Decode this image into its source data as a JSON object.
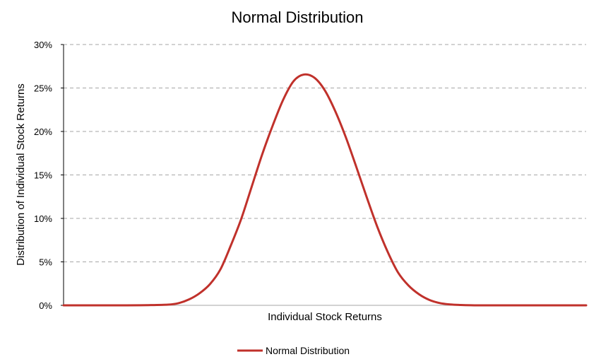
{
  "chart_data": {
    "type": "line",
    "title": "Normal Distribution",
    "xlabel": "Individual Stock Returns",
    "ylabel": "Distribution of Individual Stock Returns",
    "ylim": [
      0,
      0.3
    ],
    "yticks": [
      0,
      0.05,
      0.1,
      0.15,
      0.2,
      0.25,
      0.3
    ],
    "ytick_labels": [
      "0%",
      "5%",
      "10%",
      "15%",
      "20%",
      "25%",
      "30%"
    ],
    "grid": "horizontal-dashed",
    "legend": "bottom",
    "colors": {
      "series": "#c0312b",
      "grid": "#a6a6a6",
      "axis": "#000000"
    },
    "series": [
      {
        "name": "Normal Distribution",
        "x": [
          0,
          0.06,
          0.12,
          0.16,
          0.2,
          0.22,
          0.24,
          0.26,
          0.28,
          0.3,
          0.32,
          0.34,
          0.36,
          0.38,
          0.4,
          0.42,
          0.44,
          0.46,
          0.48,
          0.5,
          0.52,
          0.54,
          0.56,
          0.58,
          0.6,
          0.62,
          0.64,
          0.66,
          0.68,
          0.7,
          0.72,
          0.74,
          0.76,
          0.78,
          0.8,
          0.84,
          0.88,
          0.94,
          1.0
        ],
        "values": [
          0,
          0,
          0,
          0.0002,
          0.0008,
          0.0025,
          0.0068,
          0.0138,
          0.0243,
          0.0412,
          0.0688,
          0.0995,
          0.1365,
          0.1735,
          0.2065,
          0.2362,
          0.2578,
          0.2655,
          0.2618,
          0.2472,
          0.2232,
          0.1935,
          0.1595,
          0.1245,
          0.0908,
          0.0618,
          0.0378,
          0.0228,
          0.0128,
          0.0062,
          0.0026,
          0.001,
          0.0004,
          0.0001,
          0,
          0,
          0,
          0,
          0
        ]
      }
    ]
  }
}
